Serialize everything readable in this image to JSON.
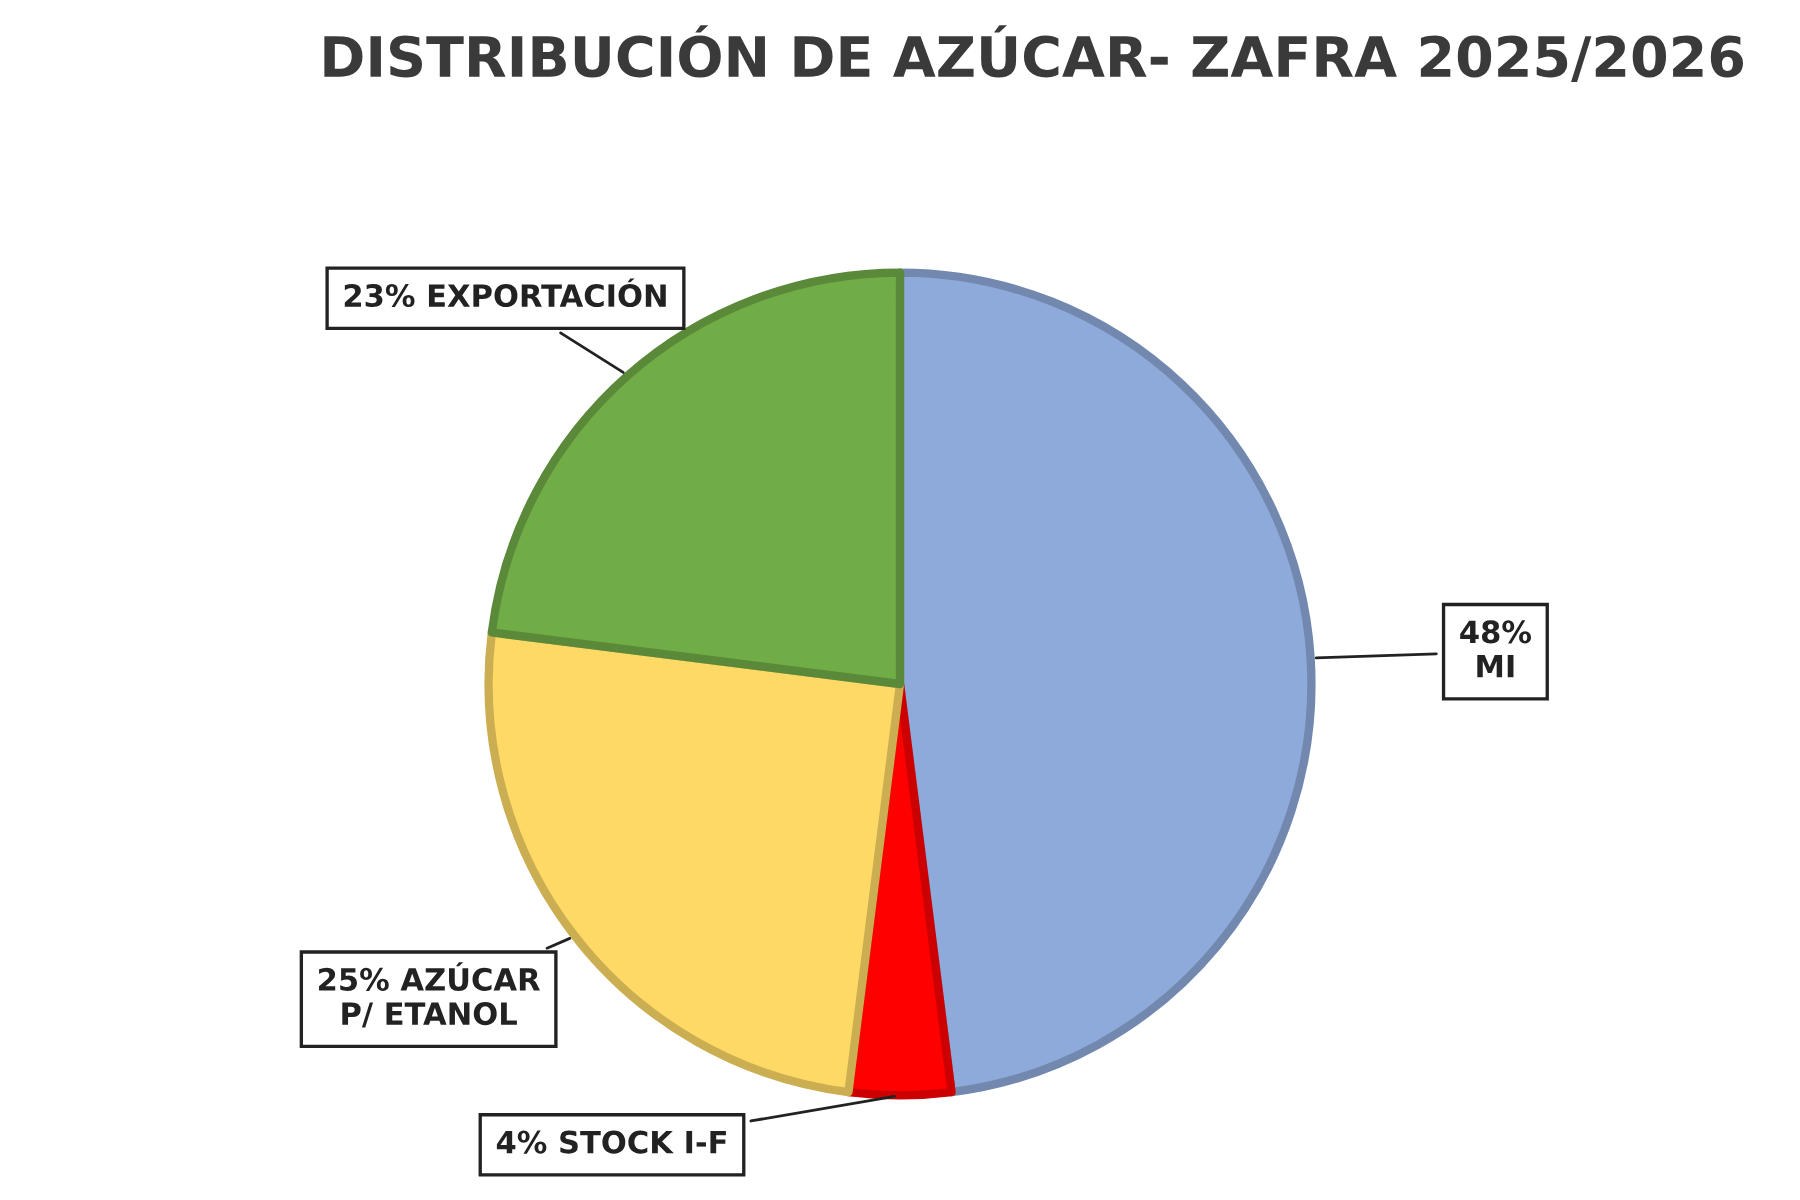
{
  "chart_data": {
    "type": "pie",
    "title": "DISTRIBUCIÓN DE AZÚCAR- ZAFRA 2025/2026",
    "categories": [
      "48%\nMI",
      "4% STOCK I-F",
      "25% AZÚCAR\nP/ ETANOL",
      "23% EXPORTACIÓN"
    ],
    "values": [
      48,
      4,
      25,
      23
    ],
    "colors": [
      "#8eaadb",
      "#ff0000",
      "#ffd966",
      "#70ad47"
    ],
    "legend": false
  }
}
